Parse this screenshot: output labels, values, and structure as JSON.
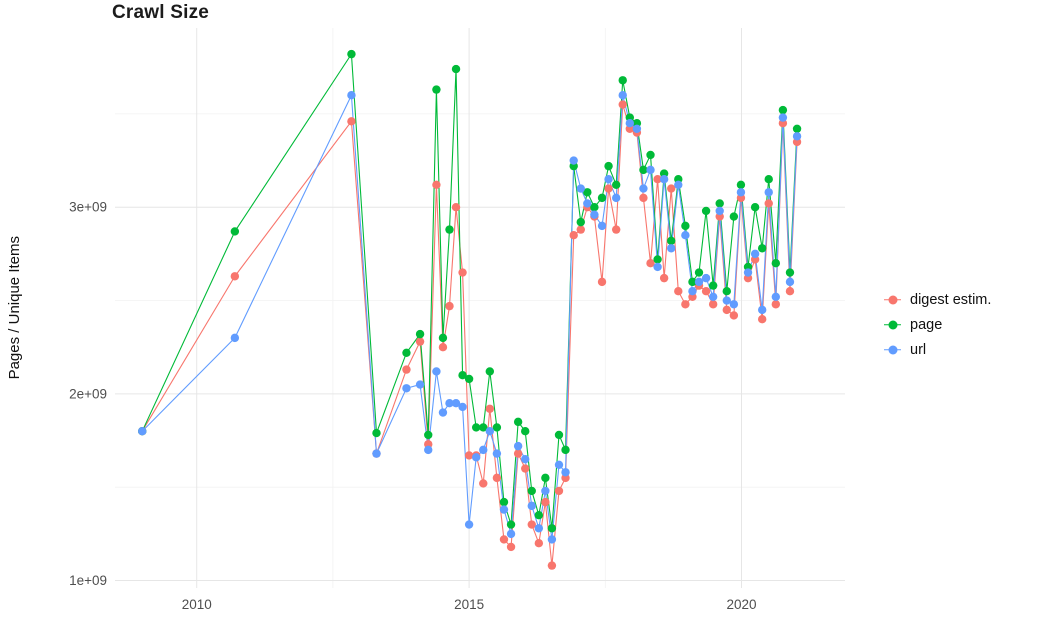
{
  "chart_data": {
    "type": "line",
    "title": "Crawl Size",
    "xlabel": "",
    "ylabel": "Pages / Unique Items",
    "legend_position": "right",
    "grid": true,
    "grid_color": "#e6e6e6",
    "grid_minor_color": "#f2f2f2",
    "tick_label_color": "#4e4e4e",
    "background_color": "#ffffff",
    "xlim": [
      2008.5,
      2021.9
    ],
    "ylim": [
      960000000.0,
      3960000000.0
    ],
    "x_ticks": [
      {
        "value": 2010,
        "label": "2010"
      },
      {
        "value": 2015,
        "label": "2015"
      },
      {
        "value": 2020,
        "label": "2020"
      }
    ],
    "y_ticks": [
      {
        "value": 1000000000.0,
        "label": "1e+09"
      },
      {
        "value": 2000000000.0,
        "label": "2e+09"
      },
      {
        "value": 3000000000.0,
        "label": "3e+09"
      }
    ],
    "x_minor": [
      2012.5,
      2017.5
    ],
    "y_minor": [
      1500000000.0,
      2500000000.0,
      3500000000.0
    ],
    "x": [
      2009.0,
      2010.7,
      2012.84,
      2013.3,
      2013.85,
      2014.1,
      2014.25,
      2014.4,
      2014.52,
      2014.64,
      2014.76,
      2014.88,
      2015.0,
      2015.13,
      2015.26,
      2015.38,
      2015.51,
      2015.64,
      2015.77,
      2015.9,
      2016.03,
      2016.15,
      2016.28,
      2016.4,
      2016.52,
      2016.65,
      2016.77,
      2016.92,
      2017.05,
      2017.17,
      2017.3,
      2017.44,
      2017.56,
      2017.7,
      2017.82,
      2017.95,
      2018.08,
      2018.2,
      2018.33,
      2018.46,
      2018.58,
      2018.71,
      2018.84,
      2018.97,
      2019.1,
      2019.22,
      2019.35,
      2019.48,
      2019.6,
      2019.73,
      2019.86,
      2019.99,
      2020.12,
      2020.25,
      2020.38,
      2020.5,
      2020.63,
      2020.76,
      2020.89,
      2021.02
    ],
    "series": [
      {
        "name": "digest estim.",
        "color": "#F8766D",
        "values": [
          1800000000.0,
          2630000000.0,
          3460000000.0,
          1680000000.0,
          2130000000.0,
          2280000000.0,
          1730000000.0,
          3120000000.0,
          2250000000.0,
          2470000000.0,
          3000000000.0,
          2650000000.0,
          1670000000.0,
          1670000000.0,
          1520000000.0,
          1920000000.0,
          1550000000.0,
          1220000000.0,
          1180000000.0,
          1680000000.0,
          1600000000.0,
          1300000000.0,
          1200000000.0,
          1420000000.0,
          1080000000.0,
          1480000000.0,
          1550000000.0,
          2850000000.0,
          2880000000.0,
          3000000000.0,
          2950000000.0,
          2600000000.0,
          3100000000.0,
          2880000000.0,
          3550000000.0,
          3420000000.0,
          3400000000.0,
          3050000000.0,
          2700000000.0,
          3150000000.0,
          2620000000.0,
          3100000000.0,
          2550000000.0,
          2480000000.0,
          2520000000.0,
          2580000000.0,
          2550000000.0,
          2480000000.0,
          2950000000.0,
          2450000000.0,
          2420000000.0,
          3050000000.0,
          2620000000.0,
          2720000000.0,
          2400000000.0,
          3020000000.0,
          2480000000.0,
          3450000000.0,
          2550000000.0,
          3350000000.0
        ]
      },
      {
        "name": "page",
        "color": "#00BA38",
        "values": [
          1800000000.0,
          2870000000.0,
          3820000000.0,
          1790000000.0,
          2220000000.0,
          2320000000.0,
          1780000000.0,
          3630000000.0,
          2300000000.0,
          2880000000.0,
          3740000000.0,
          2100000000.0,
          2080000000.0,
          1820000000.0,
          1820000000.0,
          2120000000.0,
          1820000000.0,
          1420000000.0,
          1300000000.0,
          1850000000.0,
          1800000000.0,
          1480000000.0,
          1350000000.0,
          1550000000.0,
          1280000000.0,
          1780000000.0,
          1700000000.0,
          3220000000.0,
          2920000000.0,
          3080000000.0,
          3000000000.0,
          3050000000.0,
          3220000000.0,
          3120000000.0,
          3680000000.0,
          3480000000.0,
          3450000000.0,
          3200000000.0,
          3280000000.0,
          2720000000.0,
          3180000000.0,
          2820000000.0,
          3150000000.0,
          2900000000.0,
          2600000000.0,
          2650000000.0,
          2980000000.0,
          2580000000.0,
          3020000000.0,
          2550000000.0,
          2950000000.0,
          3120000000.0,
          2680000000.0,
          3000000000.0,
          2780000000.0,
          3150000000.0,
          2700000000.0,
          3520000000.0,
          2650000000.0,
          3420000000.0
        ]
      },
      {
        "name": "url",
        "color": "#619CFF",
        "values": [
          1800000000.0,
          2300000000.0,
          3600000000.0,
          1680000000.0,
          2030000000.0,
          2050000000.0,
          1700000000.0,
          2120000000.0,
          1900000000.0,
          1950000000.0,
          1950000000.0,
          1930000000.0,
          1300000000.0,
          1660000000.0,
          1700000000.0,
          1800000000.0,
          1680000000.0,
          1380000000.0,
          1250000000.0,
          1720000000.0,
          1650000000.0,
          1400000000.0,
          1280000000.0,
          1480000000.0,
          1220000000.0,
          1620000000.0,
          1580000000.0,
          3250000000.0,
          3100000000.0,
          3020000000.0,
          2960000000.0,
          2900000000.0,
          3150000000.0,
          3050000000.0,
          3600000000.0,
          3450000000.0,
          3420000000.0,
          3100000000.0,
          3200000000.0,
          2680000000.0,
          3150000000.0,
          2780000000.0,
          3120000000.0,
          2850000000.0,
          2550000000.0,
          2600000000.0,
          2620000000.0,
          2520000000.0,
          2980000000.0,
          2500000000.0,
          2480000000.0,
          3080000000.0,
          2650000000.0,
          2750000000.0,
          2450000000.0,
          3080000000.0,
          2520000000.0,
          3480000000.0,
          2600000000.0,
          3380000000.0
        ]
      }
    ]
  }
}
